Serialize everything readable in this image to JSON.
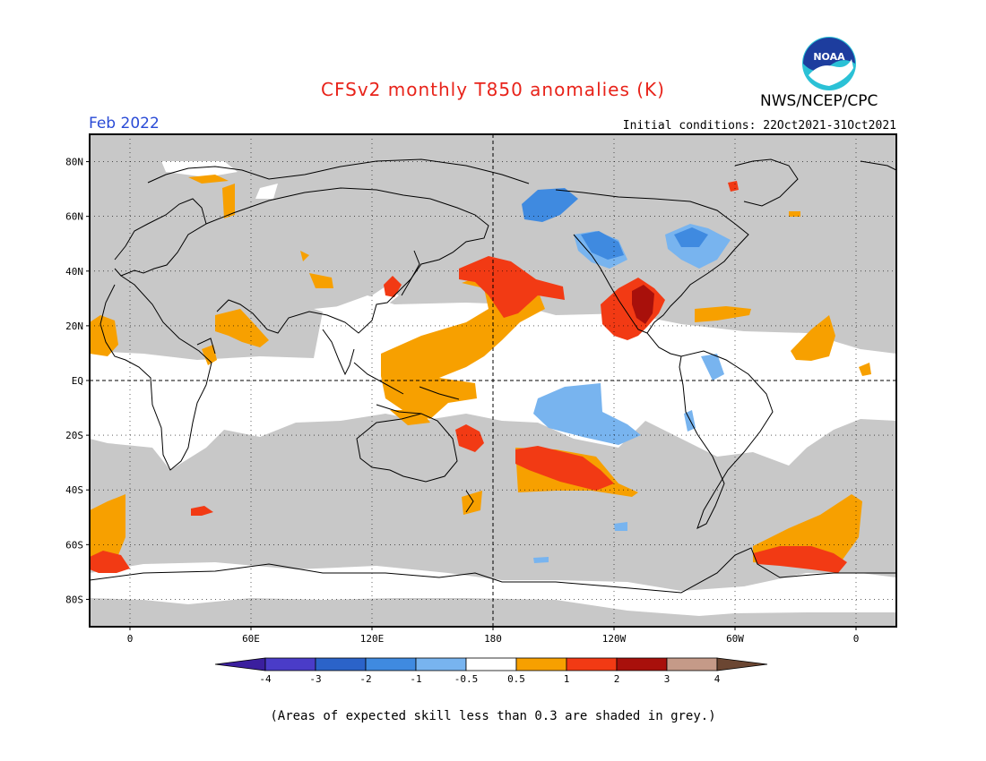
{
  "header": {
    "title": "CFSv2 monthly T850 anomalies (K)",
    "agency": "NWS/NCEP/CPC",
    "period": "Feb 2022",
    "initial_conditions": "Initial conditions: 22Oct2021-31Oct2021",
    "logo_text": "NOAA"
  },
  "map": {
    "lat_ticks": [
      {
        "lat": 80,
        "label": "80N"
      },
      {
        "lat": 60,
        "label": "60N"
      },
      {
        "lat": 40,
        "label": "40N"
      },
      {
        "lat": 20,
        "label": "20N"
      },
      {
        "lat": 0,
        "label": "EQ"
      },
      {
        "lat": -20,
        "label": "20S"
      },
      {
        "lat": -40,
        "label": "40S"
      },
      {
        "lat": -60,
        "label": "60S"
      },
      {
        "lat": -80,
        "label": "80S"
      }
    ],
    "lon_ticks": [
      {
        "lon": 0,
        "label": "0"
      },
      {
        "lon": 60,
        "label": "60E"
      },
      {
        "lon": 120,
        "label": "120E"
      },
      {
        "lon": 180,
        "label": "180"
      },
      {
        "lon": 240,
        "label": "120W"
      },
      {
        "lon": 300,
        "label": "60W"
      },
      {
        "lon": 360,
        "label": "0"
      }
    ],
    "lon_range": [
      -20,
      380
    ],
    "lat_range": [
      -90,
      90
    ],
    "skill_mask_color": "#c8c8c8",
    "land_outline": "coastlines"
  },
  "legend": {
    "bins": [
      {
        "color": "#3b1f9e"
      },
      {
        "color": "#4a3cc8"
      },
      {
        "color": "#2b63c9"
      },
      {
        "color": "#3f8ae0"
      },
      {
        "color": "#78b4ef"
      },
      {
        "color": "#ffffff"
      },
      {
        "color": "#f7a000"
      },
      {
        "color": "#f23a14"
      },
      {
        "color": "#a8100b"
      },
      {
        "color": "#c59a88"
      },
      {
        "color": "#6b4632"
      }
    ],
    "labels": [
      "-4",
      "-3",
      "-2",
      "-1",
      "-0.5",
      "0.5",
      "1",
      "2",
      "3",
      "4"
    ]
  },
  "footnote": "(Areas of expected skill less than 0.3 are shaded in grey.)"
}
